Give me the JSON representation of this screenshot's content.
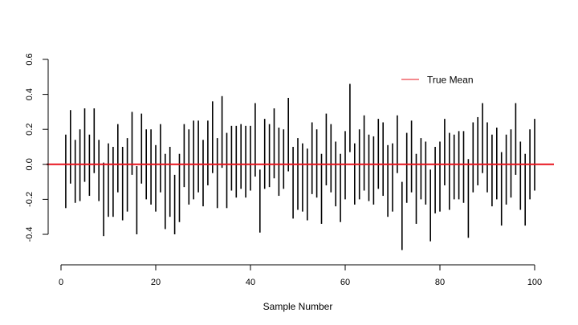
{
  "chart_data": {
    "type": "interval",
    "xlabel": "Sample Number",
    "ylabel": "",
    "xlim": [
      0,
      100
    ],
    "ylim": [
      -0.4,
      0.6
    ],
    "x_ticks": [
      0,
      20,
      40,
      60,
      80,
      100
    ],
    "y_ticks": [
      -0.4,
      -0.2,
      0.0,
      0.2,
      0.4,
      0.6
    ],
    "x_tick_labels": [
      "0",
      "20",
      "40",
      "60",
      "80",
      "100"
    ],
    "y_tick_labels": [
      "-0.4",
      "-0.2",
      "0.0",
      "0.2",
      "0.4",
      "0.6"
    ],
    "reference_line": {
      "name": "True Mean",
      "value": 0.0,
      "color": "#e8141e"
    },
    "legend": {
      "position": "top-right",
      "entries": [
        "True Mean"
      ]
    },
    "interval_color": "#000000",
    "grid": false,
    "intervals": [
      [
        -0.25,
        0.17
      ],
      [
        -0.11,
        0.31
      ],
      [
        -0.22,
        0.14
      ],
      [
        -0.21,
        0.2
      ],
      [
        -0.1,
        0.32
      ],
      [
        -0.18,
        0.17
      ],
      [
        -0.05,
        0.32
      ],
      [
        -0.21,
        0.14
      ],
      [
        -0.41,
        0.01
      ],
      [
        -0.3,
        0.12
      ],
      [
        -0.3,
        0.1
      ],
      [
        -0.16,
        0.23
      ],
      [
        -0.32,
        0.1
      ],
      [
        -0.27,
        0.15
      ],
      [
        -0.06,
        0.3
      ],
      [
        -0.4,
        -0.01
      ],
      [
        -0.11,
        0.29
      ],
      [
        -0.2,
        0.2
      ],
      [
        -0.23,
        0.2
      ],
      [
        -0.27,
        0.11
      ],
      [
        -0.16,
        0.23
      ],
      [
        -0.37,
        0.06
      ],
      [
        -0.3,
        0.1
      ],
      [
        -0.4,
        -0.06
      ],
      [
        -0.33,
        0.06
      ],
      [
        -0.13,
        0.23
      ],
      [
        -0.23,
        0.2
      ],
      [
        -0.2,
        0.25
      ],
      [
        -0.16,
        0.25
      ],
      [
        -0.24,
        0.14
      ],
      [
        -0.12,
        0.25
      ],
      [
        -0.05,
        0.36
      ],
      [
        -0.25,
        0.15
      ],
      [
        -0.02,
        0.39
      ],
      [
        -0.25,
        0.18
      ],
      [
        -0.15,
        0.22
      ],
      [
        -0.19,
        0.22
      ],
      [
        -0.14,
        0.23
      ],
      [
        -0.19,
        0.22
      ],
      [
        -0.15,
        0.22
      ],
      [
        -0.07,
        0.35
      ],
      [
        -0.39,
        -0.03
      ],
      [
        -0.14,
        0.26
      ],
      [
        -0.13,
        0.23
      ],
      [
        -0.08,
        0.32
      ],
      [
        -0.18,
        0.21
      ],
      [
        -0.14,
        0.2
      ],
      [
        -0.04,
        0.38
      ],
      [
        -0.31,
        0.1
      ],
      [
        -0.26,
        0.15
      ],
      [
        -0.27,
        0.12
      ],
      [
        -0.32,
        0.09
      ],
      [
        -0.17,
        0.24
      ],
      [
        -0.19,
        0.2
      ],
      [
        -0.34,
        0.06
      ],
      [
        -0.12,
        0.29
      ],
      [
        -0.16,
        0.23
      ],
      [
        -0.24,
        0.13
      ],
      [
        -0.33,
        0.06
      ],
      [
        -0.2,
        0.19
      ],
      [
        0.07,
        0.46
      ],
      [
        -0.23,
        0.12
      ],
      [
        -0.2,
        0.2
      ],
      [
        -0.15,
        0.28
      ],
      [
        -0.21,
        0.17
      ],
      [
        -0.23,
        0.16
      ],
      [
        -0.14,
        0.26
      ],
      [
        -0.18,
        0.24
      ],
      [
        -0.3,
        0.11
      ],
      [
        -0.27,
        0.12
      ],
      [
        -0.05,
        0.28
      ],
      [
        -0.49,
        -0.1
      ],
      [
        -0.22,
        0.18
      ],
      [
        -0.16,
        0.25
      ],
      [
        -0.34,
        0.06
      ],
      [
        -0.2,
        0.15
      ],
      [
        -0.23,
        0.13
      ],
      [
        -0.44,
        -0.03
      ],
      [
        -0.28,
        0.1
      ],
      [
        -0.27,
        0.13
      ],
      [
        -0.12,
        0.26
      ],
      [
        -0.26,
        0.18
      ],
      [
        -0.2,
        0.17
      ],
      [
        -0.2,
        0.19
      ],
      [
        -0.22,
        0.19
      ],
      [
        -0.42,
        0.03
      ],
      [
        -0.16,
        0.24
      ],
      [
        -0.12,
        0.27
      ],
      [
        -0.05,
        0.35
      ],
      [
        -0.16,
        0.24
      ],
      [
        -0.24,
        0.17
      ],
      [
        -0.2,
        0.21
      ],
      [
        -0.35,
        0.07
      ],
      [
        -0.23,
        0.17
      ],
      [
        -0.19,
        0.2
      ],
      [
        -0.06,
        0.35
      ],
      [
        -0.26,
        0.13
      ],
      [
        -0.35,
        0.06
      ],
      [
        -0.2,
        0.2
      ],
      [
        -0.15,
        0.26
      ]
    ]
  }
}
